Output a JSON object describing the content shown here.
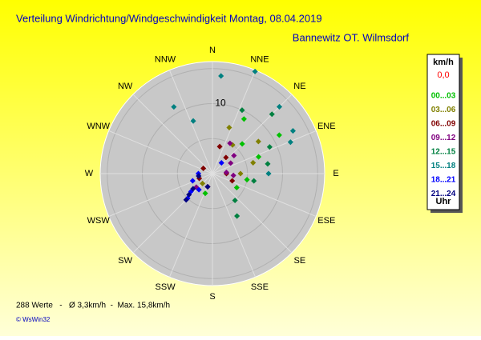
{
  "chart_data": {
    "type": "polar-scatter",
    "title": "Verteilung Windrichtung/Windgeschwindigkeit  Montag, 08.04.2019",
    "subtitle": "Bannewitz OT. Wilmsdorf",
    "compass": [
      "N",
      "NNE",
      "NE",
      "ENE",
      "E",
      "ESE",
      "SE",
      "SSE",
      "S",
      "SSW",
      "SW",
      "WSW",
      "W",
      "WNW",
      "NW",
      "NNW"
    ],
    "rlim": [
      0,
      16
    ],
    "rticks": [
      5,
      10,
      15
    ],
    "rtick_labels": [
      {
        "value": 10,
        "label": "10"
      }
    ],
    "legend_title": "km/h",
    "legend_calm": "0,0",
    "legend_calm_color": "#ff0000",
    "legend_footer": "Uhr",
    "series": [
      {
        "name": "00...03",
        "color": "#00c000",
        "directions": [
          30,
          45,
          60,
          70,
          100,
          120,
          200
        ],
        "values": [
          9,
          6,
          11,
          7,
          5,
          4,
          3
        ]
      },
      {
        "name": "03...06",
        "color": "#808000",
        "directions": [
          20,
          35,
          55,
          75,
          90,
          225
        ],
        "values": [
          7,
          5,
          8,
          6,
          4,
          2
        ]
      },
      {
        "name": "06...09",
        "color": "#800000",
        "directions": [
          15,
          40,
          90,
          110,
          200,
          250,
          300
        ],
        "values": [
          4,
          3,
          2,
          3,
          2,
          2,
          1.5
        ]
      },
      {
        "name": "09...12",
        "color": "#800080",
        "directions": [
          30,
          50,
          60,
          85,
          95,
          230
        ],
        "values": [
          5,
          4,
          3,
          2,
          3,
          3
        ]
      },
      {
        "name": "12...15",
        "color": "#008040",
        "directions": [
          25,
          45,
          65,
          80,
          100,
          140,
          150
        ],
        "values": [
          10,
          12,
          9,
          8,
          6,
          5,
          7
        ]
      },
      {
        "name": "15...18",
        "color": "#008080",
        "directions": [
          22.6,
          5,
          45,
          62,
          68,
          90,
          330,
          340
        ],
        "values": [
          15.8,
          14,
          13.5,
          13,
          12,
          8,
          11,
          8
        ]
      },
      {
        "name": "18...21",
        "color": "#0000ff",
        "directions": [
          225,
          230,
          220,
          270,
          250,
          40
        ],
        "values": [
          5,
          4,
          3,
          2,
          3,
          2
        ]
      },
      {
        "name": "21...24",
        "color": "#000080",
        "directions": [
          225,
          228,
          232,
          260,
          200
        ],
        "values": [
          5.3,
          4.5,
          3.5,
          2,
          2
        ]
      }
    ],
    "footer": "288 Werte   -   Ø 3,3km/h  -  Max. 15,8km/h",
    "credit": "© WsWin32"
  }
}
